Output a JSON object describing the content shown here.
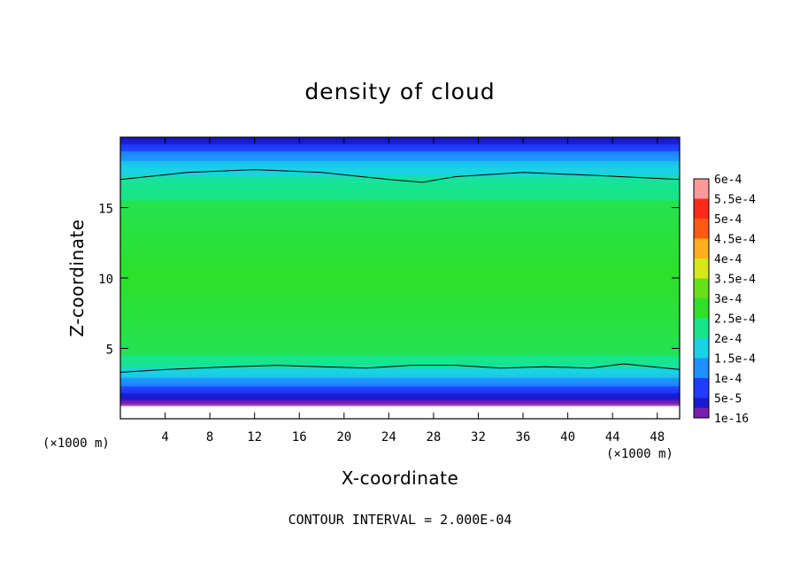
{
  "chart_data": {
    "type": "heatmap",
    "title": "density of cloud",
    "xlabel": "X-coordinate",
    "ylabel": "Z-coordinate",
    "x_unit": "(×1000 m)",
    "y_unit": "(×1000 m)",
    "xlim": [
      0,
      50
    ],
    "ylim": [
      0,
      20
    ],
    "x_ticks": [
      4,
      8,
      12,
      16,
      20,
      24,
      28,
      32,
      36,
      40,
      44,
      48
    ],
    "y_ticks": [
      5,
      10,
      15
    ],
    "footer": "CONTOUR INTERVAL = 2.000E-04",
    "colorbar": {
      "levels": [
        "1e-16",
        "5e-5",
        "1e-4",
        "1.5e-4",
        "2e-4",
        "2.5e-4",
        "3e-4",
        "3.5e-4",
        "4e-4",
        "4.5e-4",
        "5e-4",
        "5.5e-4",
        "6e-4"
      ],
      "colors": [
        "#7a1fb0",
        "#1a1acc",
        "#1f3cff",
        "#1f90ff",
        "#19d2e6",
        "#18e68c",
        "#2ee02a",
        "#66e01a",
        "#d6e81a",
        "#ffb01a",
        "#ff5a12",
        "#ff2a1a",
        "#ff9a9a"
      ]
    },
    "contour_lines": [
      {
        "level": "2e-4",
        "points": [
          [
            0,
            17.0
          ],
          [
            6,
            17.5
          ],
          [
            12,
            17.7
          ],
          [
            18,
            17.5
          ],
          [
            24,
            17.0
          ],
          [
            27,
            16.8
          ],
          [
            30,
            17.2
          ],
          [
            36,
            17.5
          ],
          [
            42,
            17.3
          ],
          [
            50,
            17.0
          ]
        ]
      },
      {
        "level": "2e-4",
        "points": [
          [
            0,
            3.3
          ],
          [
            4,
            3.5
          ],
          [
            10,
            3.7
          ],
          [
            14,
            3.8
          ],
          [
            18,
            3.7
          ],
          [
            22,
            3.6
          ],
          [
            26,
            3.8
          ],
          [
            30,
            3.8
          ],
          [
            34,
            3.6
          ],
          [
            38,
            3.7
          ],
          [
            42,
            3.6
          ],
          [
            45,
            3.9
          ],
          [
            50,
            3.5
          ]
        ]
      }
    ],
    "layers": [
      {
        "z_from": 19.5,
        "z_to": 20.0,
        "value": "5e-5"
      },
      {
        "z_from": 19.0,
        "z_to": 19.5,
        "value": "1e-4"
      },
      {
        "z_from": 18.3,
        "z_to": 19.0,
        "value": "1.5e-4"
      },
      {
        "z_from": 17.2,
        "z_to": 18.3,
        "value": "2e-4"
      },
      {
        "z_from": 15.5,
        "z_to": 17.2,
        "value": "2.5e-4"
      },
      {
        "z_from": 4.5,
        "z_to": 15.5,
        "value": "3e-4"
      },
      {
        "z_from": 3.6,
        "z_to": 4.5,
        "value": "2.5e-4"
      },
      {
        "z_from": 2.9,
        "z_to": 3.6,
        "value": "2e-4"
      },
      {
        "z_from": 2.3,
        "z_to": 2.9,
        "value": "1.5e-4"
      },
      {
        "z_from": 1.8,
        "z_to": 2.3,
        "value": "1e-4"
      },
      {
        "z_from": 1.3,
        "z_to": 1.8,
        "value": "5e-5"
      },
      {
        "z_from": 0.9,
        "z_to": 1.3,
        "value": "1e-16"
      }
    ]
  }
}
